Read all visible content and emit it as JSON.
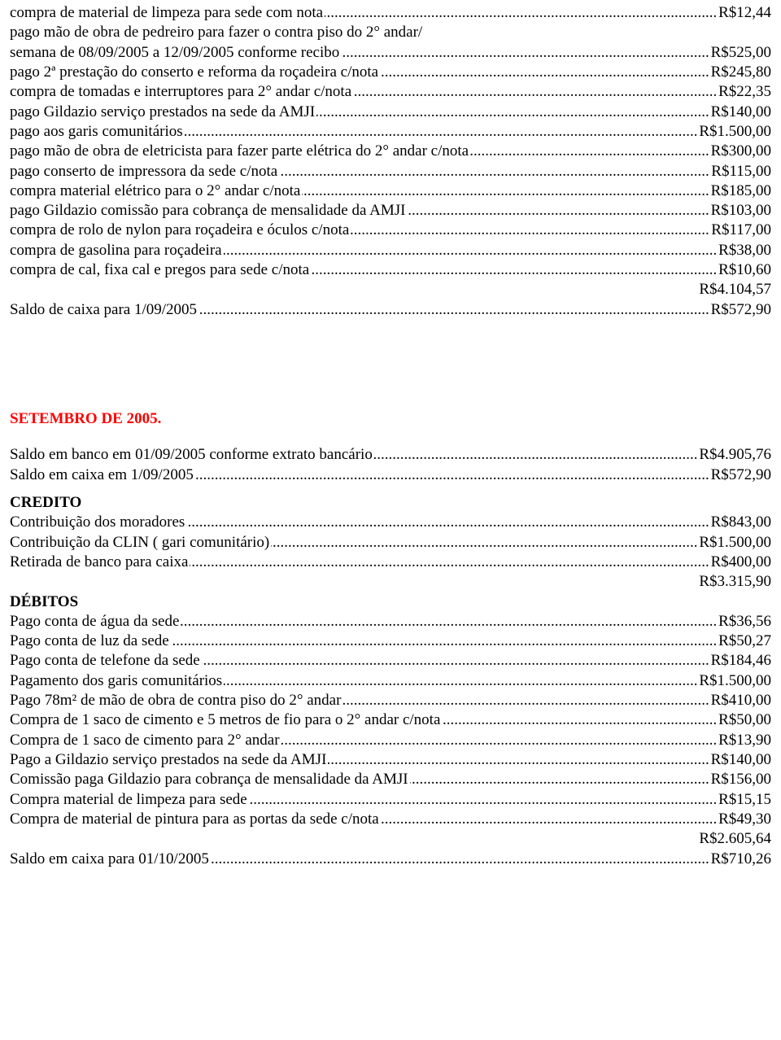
{
  "colors": {
    "text": "#000000",
    "accent": "#ff0000",
    "background": "#ffffff"
  },
  "font": {
    "family": "Times New Roman",
    "size_pt": 14
  },
  "block1": {
    "items": [
      {
        "label": "compra de material de limpeza para sede com nota",
        "amount": "R$12,44",
        "wrap": null
      },
      {
        "label": "pago mão de obra de pedreiro para fazer o contra piso do 2° andar/ semana de 08/09/2005 a 12/09/2005 conforme recibo",
        "amount": "R$525,00",
        "wrap": true
      },
      {
        "label": "pago 2ª prestação do conserto e reforma da roçadeira c/nota",
        "amount": "R$245,80",
        "wrap": null
      },
      {
        "label": "compra de tomadas e interruptores para 2° andar c/nota",
        "amount": "R$22,35",
        "wrap": null
      },
      {
        "label": "pago Gildazio serviço prestados na sede da AMJI",
        "amount": "R$140,00",
        "wrap": null
      },
      {
        "label": "pago aos garis comunitários",
        "amount": "R$1.500,00",
        "wrap": null
      },
      {
        "label": "pago mão de obra de eletricista para fazer parte elétrica do 2° andar c/nota",
        "amount": "R$300,00",
        "wrap": null
      },
      {
        "label": "pago conserto de impressora da sede c/nota",
        "amount": "R$115,00",
        "wrap": null
      },
      {
        "label": "compra material elétrico para o 2° andar c/nota",
        "amount": "R$185,00",
        "wrap": null
      },
      {
        "label": "pago Gildazio comissão para cobrança de mensalidade da AMJI",
        "amount": "R$103,00",
        "wrap": null
      },
      {
        "label": "compra de rolo de nylon para roçadeira e óculos c/nota",
        "amount": "R$117,00",
        "wrap": null
      },
      {
        "label": "compra de gasolina para roçadeira",
        "amount": "R$38,00",
        "wrap": null
      },
      {
        "label": "compra de cal, fixa cal e pregos para sede c/nota",
        "amount": "R$10,60",
        "wrap": null
      }
    ],
    "total": "R$4.104,57",
    "balance": {
      "label": "Saldo de caixa para 1/09/2005",
      "amount": "R$572,90"
    }
  },
  "section2": {
    "title": "SETEMBRO DE 2005.",
    "opening": [
      {
        "label": "Saldo em banco em 01/09/2005 conforme extrato bancário",
        "amount": "R$4.905,76"
      },
      {
        "label": "Saldo em caixa em 1/09/2005",
        "amount": "R$572,90"
      }
    ],
    "credito_header": "CREDITO",
    "credito": [
      {
        "label": "Contribuição dos moradores",
        "amount": "R$843,00"
      },
      {
        "label": "Contribuição da CLIN ( gari comunitário)",
        "amount": "R$1.500,00"
      },
      {
        "label": "Retirada de banco para caixa",
        "amount": "R$400,00"
      }
    ],
    "credito_total": "R$3.315,90",
    "debitos_header": "DÉBITOS",
    "debitos": [
      {
        "label": "Pago conta de água da sede",
        "amount": "R$36,56"
      },
      {
        "label": "Pago conta de luz da sede",
        "amount": "R$50,27"
      },
      {
        "label": "Pago conta de telefone da sede",
        "amount": "R$184,46"
      },
      {
        "label": "Pagamento dos garis comunitários",
        "amount": "R$1.500,00"
      },
      {
        "label": "Pago 78m² de mão de obra de contra piso do 2° andar",
        "amount": "R$410,00"
      },
      {
        "label": "Compra de 1 saco de cimento e 5 metros de fio para o 2° andar c/nota",
        "amount": "R$50,00"
      },
      {
        "label": "Compra de 1 saco de cimento para 2° andar",
        "amount": "R$13,90"
      },
      {
        "label": "Pago a Gildazio serviço prestados na sede da AMJI",
        "amount": "R$140,00"
      },
      {
        "label": "Comissão paga Gildazio para cobrança de mensalidade da AMJI",
        "amount": "R$156,00"
      },
      {
        "label": "Compra material de limpeza para sede",
        "amount": "R$15,15"
      },
      {
        "label": "Compra de material de pintura para as portas da sede c/nota",
        "amount": "R$49,30"
      }
    ],
    "debitos_total": "R$2.605,64",
    "balance": {
      "label": "Saldo em caixa para 01/10/2005",
      "amount": "R$710,26"
    }
  }
}
